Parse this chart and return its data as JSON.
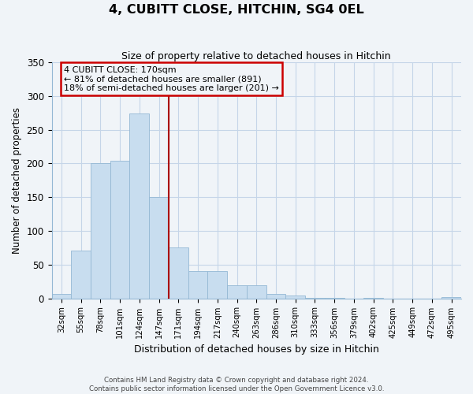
{
  "title": "4, CUBITT CLOSE, HITCHIN, SG4 0EL",
  "subtitle": "Size of property relative to detached houses in Hitchin",
  "xlabel": "Distribution of detached houses by size in Hitchin",
  "ylabel": "Number of detached properties",
  "bar_labels": [
    "32sqm",
    "55sqm",
    "78sqm",
    "101sqm",
    "124sqm",
    "147sqm",
    "171sqm",
    "194sqm",
    "217sqm",
    "240sqm",
    "263sqm",
    "286sqm",
    "310sqm",
    "333sqm",
    "356sqm",
    "379sqm",
    "402sqm",
    "425sqm",
    "449sqm",
    "472sqm",
    "495sqm"
  ],
  "bar_values": [
    7,
    71,
    201,
    204,
    274,
    150,
    75,
    40,
    40,
    19,
    19,
    6,
    4,
    1,
    1,
    0,
    1,
    0,
    0,
    0,
    2
  ],
  "bar_color": "#c8ddef",
  "bar_edgecolor": "#94b8d4",
  "marker_index": 6,
  "marker_label": "4 CUBITT CLOSE: 170sqm",
  "annotation_line1": "← 81% of detached houses are smaller (891)",
  "annotation_line2": "18% of semi-detached houses are larger (201) →",
  "annotation_box_edgecolor": "#cc0000",
  "marker_line_color": "#aa0000",
  "ylim": [
    0,
    350
  ],
  "yticks": [
    0,
    50,
    100,
    150,
    200,
    250,
    300,
    350
  ],
  "footer_line1": "Contains HM Land Registry data © Crown copyright and database right 2024.",
  "footer_line2": "Contains public sector information licensed under the Open Government Licence v3.0.",
  "bg_color": "#f0f4f8",
  "grid_color": "#c5d5e8",
  "spine_color": "#94b8d4"
}
